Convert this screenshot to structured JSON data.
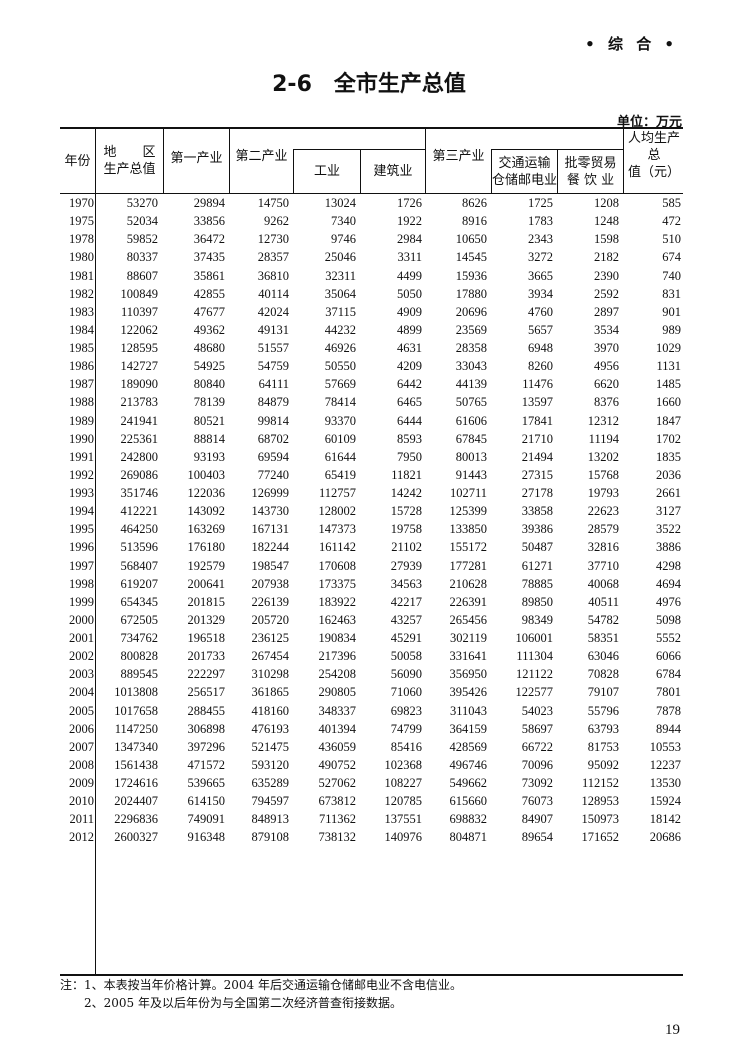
{
  "section_label": "• 综 合 •",
  "title": "2-6　全市生产总值",
  "unit": "单位：万元",
  "headers": {
    "year": "年份",
    "gdp_line1": "地　　区",
    "gdp_line2": "生产总值",
    "primary": "第一产业",
    "secondary": "第二产业",
    "industry": "工业",
    "construction": "建筑业",
    "tertiary": "第三产业",
    "transport_line1": "交通运输",
    "transport_line2": "仓储邮电业",
    "retail_line1": "批零贸易",
    "retail_line2": "餐 饮 业",
    "percapita_line1": "人均生产总",
    "percapita_line2": "值（元）"
  },
  "rows": [
    [
      "1970",
      "53270",
      "29894",
      "14750",
      "13024",
      "1726",
      "8626",
      "1725",
      "1208",
      "585"
    ],
    [
      "1975",
      "52034",
      "33856",
      "9262",
      "7340",
      "1922",
      "8916",
      "1783",
      "1248",
      "472"
    ],
    [
      "1978",
      "59852",
      "36472",
      "12730",
      "9746",
      "2984",
      "10650",
      "2343",
      "1598",
      "510"
    ],
    [
      "1980",
      "80337",
      "37435",
      "28357",
      "25046",
      "3311",
      "14545",
      "3272",
      "2182",
      "674"
    ],
    [
      "1981",
      "88607",
      "35861",
      "36810",
      "32311",
      "4499",
      "15936",
      "3665",
      "2390",
      "740"
    ],
    [
      "1982",
      "100849",
      "42855",
      "40114",
      "35064",
      "5050",
      "17880",
      "3934",
      "2592",
      "831"
    ],
    [
      "1983",
      "110397",
      "47677",
      "42024",
      "37115",
      "4909",
      "20696",
      "4760",
      "2897",
      "901"
    ],
    [
      "1984",
      "122062",
      "49362",
      "49131",
      "44232",
      "4899",
      "23569",
      "5657",
      "3534",
      "989"
    ],
    [
      "1985",
      "128595",
      "48680",
      "51557",
      "46926",
      "4631",
      "28358",
      "6948",
      "3970",
      "1029"
    ],
    [
      "1986",
      "142727",
      "54925",
      "54759",
      "50550",
      "4209",
      "33043",
      "8260",
      "4956",
      "1131"
    ],
    [
      "1987",
      "189090",
      "80840",
      "64111",
      "57669",
      "6442",
      "44139",
      "11476",
      "6620",
      "1485"
    ],
    [
      "1988",
      "213783",
      "78139",
      "84879",
      "78414",
      "6465",
      "50765",
      "13597",
      "8376",
      "1660"
    ],
    [
      "1989",
      "241941",
      "80521",
      "99814",
      "93370",
      "6444",
      "61606",
      "17841",
      "12312",
      "1847"
    ],
    [
      "1990",
      "225361",
      "88814",
      "68702",
      "60109",
      "8593",
      "67845",
      "21710",
      "11194",
      "1702"
    ],
    [
      "1991",
      "242800",
      "93193",
      "69594",
      "61644",
      "7950",
      "80013",
      "21494",
      "13202",
      "1835"
    ],
    [
      "1992",
      "269086",
      "100403",
      "77240",
      "65419",
      "11821",
      "91443",
      "27315",
      "15768",
      "2036"
    ],
    [
      "1993",
      "351746",
      "122036",
      "126999",
      "112757",
      "14242",
      "102711",
      "27178",
      "19793",
      "2661"
    ],
    [
      "1994",
      "412221",
      "143092",
      "143730",
      "128002",
      "15728",
      "125399",
      "33858",
      "22623",
      "3127"
    ],
    [
      "1995",
      "464250",
      "163269",
      "167131",
      "147373",
      "19758",
      "133850",
      "39386",
      "28579",
      "3522"
    ],
    [
      "1996",
      "513596",
      "176180",
      "182244",
      "161142",
      "21102",
      "155172",
      "50487",
      "32816",
      "3886"
    ],
    [
      "1997",
      "568407",
      "192579",
      "198547",
      "170608",
      "27939",
      "177281",
      "61271",
      "37710",
      "4298"
    ],
    [
      "1998",
      "619207",
      "200641",
      "207938",
      "173375",
      "34563",
      "210628",
      "78885",
      "40068",
      "4694"
    ],
    [
      "1999",
      "654345",
      "201815",
      "226139",
      "183922",
      "42217",
      "226391",
      "89850",
      "40511",
      "4976"
    ],
    [
      "2000",
      "672505",
      "201329",
      "205720",
      "162463",
      "43257",
      "265456",
      "98349",
      "54782",
      "5098"
    ],
    [
      "2001",
      "734762",
      "196518",
      "236125",
      "190834",
      "45291",
      "302119",
      "106001",
      "58351",
      "5552"
    ],
    [
      "2002",
      "800828",
      "201733",
      "267454",
      "217396",
      "50058",
      "331641",
      "111304",
      "63046",
      "6066"
    ],
    [
      "2003",
      "889545",
      "222297",
      "310298",
      "254208",
      "56090",
      "356950",
      "121122",
      "70828",
      "6784"
    ],
    [
      "2004",
      "1013808",
      "256517",
      "361865",
      "290805",
      "71060",
      "395426",
      "122577",
      "79107",
      "7801"
    ],
    [
      "2005",
      "1017658",
      "288455",
      "418160",
      "348337",
      "69823",
      "311043",
      "54023",
      "55796",
      "7878"
    ],
    [
      "2006",
      "1147250",
      "306898",
      "476193",
      "401394",
      "74799",
      "364159",
      "58697",
      "63793",
      "8944"
    ],
    [
      "2007",
      "1347340",
      "397296",
      "521475",
      "436059",
      "85416",
      "428569",
      "66722",
      "81753",
      "10553"
    ],
    [
      "2008",
      "1561438",
      "471572",
      "593120",
      "490752",
      "102368",
      "496746",
      "70096",
      "95092",
      "12237"
    ],
    [
      "2009",
      "1724616",
      "539665",
      "635289",
      "527062",
      "108227",
      "549662",
      "73092",
      "112152",
      "13530"
    ],
    [
      "2010",
      "2024407",
      "614150",
      "794597",
      "673812",
      "120785",
      "615660",
      "76073",
      "128953",
      "15924"
    ],
    [
      "2011",
      "2296836",
      "749091",
      "848913",
      "711362",
      "137551",
      "698832",
      "84907",
      "150973",
      "18142"
    ],
    [
      "2012",
      "2600327",
      "916348",
      "879108",
      "738132",
      "140976",
      "804871",
      "89654",
      "171652",
      "20686"
    ]
  ],
  "notes": [
    "注：1、本表按当年价格计算。2004 年后交通运输仓储邮电业不含电信业。",
    "　　2、2005 年及以后年份为与全国第二次经济普查衔接数据。"
  ],
  "page_number": "19"
}
